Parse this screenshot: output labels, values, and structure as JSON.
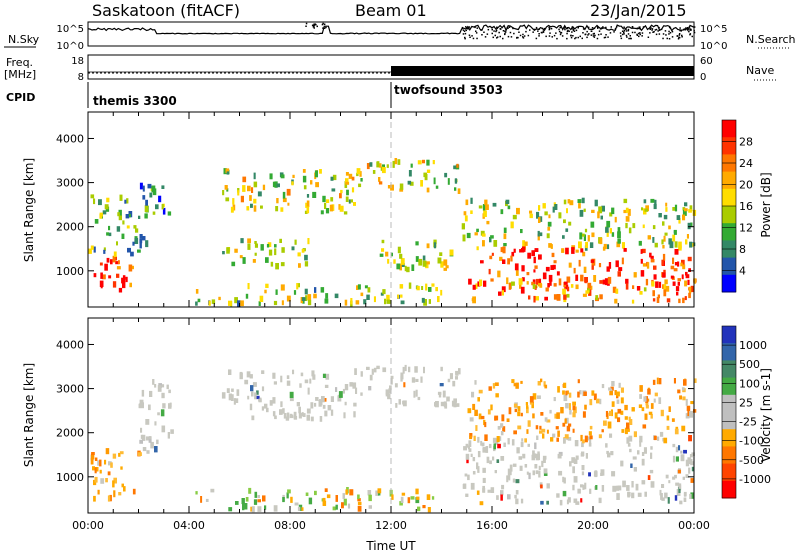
{
  "header": {
    "station": "Saskatoon (fitACF)",
    "beam": "Beam 01",
    "date": "23/Jan/2015"
  },
  "noise_panel": {
    "left_label": "N.Sky",
    "right_label": "N.Search",
    "left_ticks": [
      "10^5",
      "10^0"
    ],
    "right_ticks": [
      "10^5",
      "10^0"
    ]
  },
  "freq_panel": {
    "left_label_1": "Freq.",
    "left_label_2": "[MHz]",
    "right_label": "Nave",
    "left_ticks": [
      "18",
      "8"
    ],
    "right_ticks": [
      "60",
      "0"
    ]
  },
  "cpid": {
    "label": "CPID",
    "modes": [
      {
        "name": "themis 3300",
        "start_hour": 0
      },
      {
        "name": "twofsound 3503",
        "start_hour": 12
      }
    ]
  },
  "chart_data": [
    {
      "type": "heatmap",
      "ylabel": "Slant Range [km]",
      "xlabel": "",
      "ylim": [
        180,
        4600
      ],
      "xlim": [
        0,
        24
      ],
      "colorbar_label": "Power [dB]",
      "colorbar_ticks": [
        "28",
        "24",
        "20",
        "16",
        "12",
        "8",
        "4"
      ],
      "colorbar_colors": [
        "#ff0000",
        "#ff3300",
        "#ff7700",
        "#ffaa00",
        "#ffdd00",
        "#aacc00",
        "#33aa33",
        "#338866",
        "#2255aa",
        "#0000ff"
      ],
      "scatter_blobs": [
        {
          "t0": 0.0,
          "t1": 2.0,
          "r0": 550,
          "r1": 1300,
          "level": 0.85
        },
        {
          "t0": 0.0,
          "t1": 2.3,
          "r0": 1300,
          "r1": 2700,
          "level": 0.35
        },
        {
          "t0": 2.0,
          "t1": 3.2,
          "r0": 2200,
          "r1": 3000,
          "level": 0.3
        },
        {
          "t0": 5.3,
          "t1": 10.8,
          "r0": 2300,
          "r1": 3300,
          "level": 0.5
        },
        {
          "t0": 5.3,
          "t1": 8.8,
          "r0": 1100,
          "r1": 1700,
          "level": 0.45
        },
        {
          "t0": 4.2,
          "t1": 14.0,
          "r0": 250,
          "r1": 700,
          "level": 0.4
        },
        {
          "t0": 11.0,
          "t1": 14.7,
          "r0": 2800,
          "r1": 3500,
          "level": 0.5
        },
        {
          "t0": 11.5,
          "t1": 14.5,
          "r0": 1000,
          "r1": 1700,
          "level": 0.45
        },
        {
          "t0": 14.8,
          "t1": 24.0,
          "r0": 1500,
          "r1": 2600,
          "level": 0.45
        },
        {
          "t0": 15.5,
          "t1": 24.0,
          "r0": 600,
          "r1": 1500,
          "level": 0.9
        },
        {
          "t0": 14.8,
          "t1": 24.0,
          "r0": 300,
          "r1": 800,
          "level": 0.7
        }
      ]
    },
    {
      "type": "heatmap",
      "ylabel": "Slant Range [km]",
      "xlabel": "Time UT",
      "ylim": [
        180,
        4600
      ],
      "xlim": [
        0,
        24
      ],
      "x_ticks": [
        "00:00",
        "04:00",
        "08:00",
        "12:00",
        "16:00",
        "20:00",
        "00:00"
      ],
      "colorbar_label": "Velocity [m s-1]",
      "colorbar_ticks": [
        "1000",
        "500",
        "100",
        "25",
        "-25",
        "-100",
        "-500",
        "-1000"
      ],
      "colorbar_colors": [
        "#2233bb",
        "#3366aa",
        "#448866",
        "#44aa44",
        "#bfbfbf",
        "#bfbfbf",
        "#ffaa00",
        "#ff7700",
        "#ff4400",
        "#ff0000"
      ],
      "scatter_blobs": [
        {
          "t0": 0.0,
          "t1": 2.0,
          "r0": 500,
          "r1": 1600,
          "vel": "neg"
        },
        {
          "t0": 2.0,
          "t1": 3.3,
          "r0": 1500,
          "r1": 3200,
          "vel": "zero"
        },
        {
          "t0": 5.3,
          "t1": 10.8,
          "r0": 2300,
          "r1": 3400,
          "vel": "zero"
        },
        {
          "t0": 11.0,
          "t1": 14.7,
          "r0": 2600,
          "r1": 3500,
          "vel": "zero"
        },
        {
          "t0": 4.2,
          "t1": 14.0,
          "r0": 250,
          "r1": 700,
          "vel": "mix"
        },
        {
          "t0": 14.8,
          "t1": 24.0,
          "r0": 400,
          "r1": 1900,
          "vel": "zero"
        },
        {
          "t0": 15.0,
          "t1": 24.0,
          "r0": 1800,
          "r1": 3200,
          "vel": "neg"
        }
      ]
    }
  ]
}
